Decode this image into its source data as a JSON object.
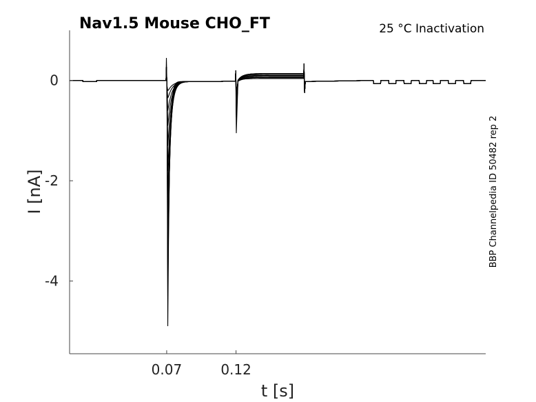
{
  "chart_data": {
    "type": "line",
    "title": "Nav1.5  Mouse  CHO_FT",
    "subtitle": "25 °C  Inactivation",
    "xlabel": "t [s]",
    "ylabel": "I [nA]",
    "side_note": "BBP Channelpedia ID 50482 rep 2",
    "xlim": [
      0,
      0.3
    ],
    "ylim": [
      -5.45,
      1.0
    ],
    "xticks": [
      0.07,
      0.12
    ],
    "xtick_labels": [
      "0.07",
      "0.12"
    ],
    "yticks": [
      0,
      -2,
      -4
    ],
    "ytick_labels": [
      "0",
      "-2",
      "-4"
    ],
    "grid": false,
    "legend": "none",
    "series_count": 12,
    "protocol": {
      "baseline_end": 0.07,
      "test_step_start": 0.07,
      "test_step_end": 0.12,
      "second_step_start": 0.12,
      "second_step_end": 0.169,
      "tail_pulses": [
        0.219,
        0.23,
        0.241,
        0.252,
        0.262,
        0.273,
        0.284
      ]
    },
    "series_peaks": [
      -4.9,
      -4.3,
      -3.8,
      -3.3,
      -2.8,
      -2.3,
      -1.8,
      -1.3,
      -0.9,
      -0.6,
      -0.35,
      -0.2
    ],
    "second_step_dip": -1.05,
    "second_step_plateau": [
      0.04,
      0.06,
      0.08,
      0.1,
      0.12,
      0.14
    ],
    "transient_max": 0.45
  }
}
